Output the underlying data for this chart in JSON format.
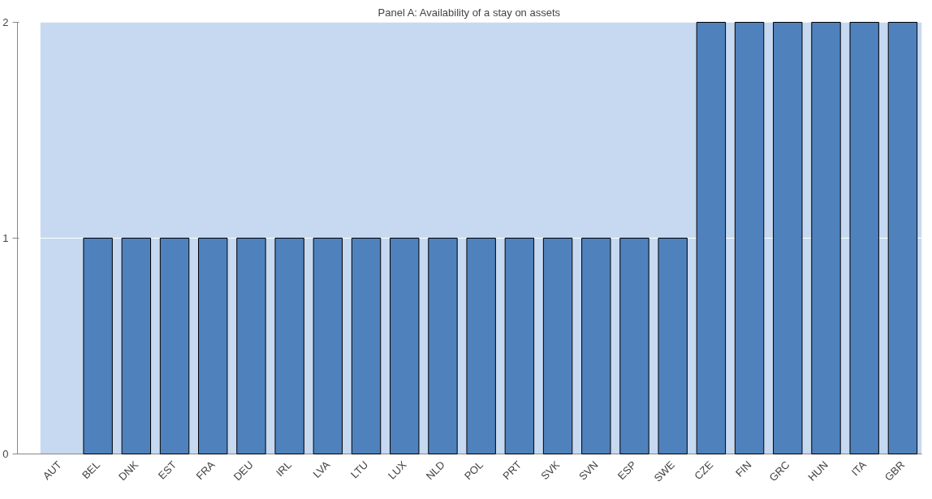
{
  "chart_data": {
    "type": "bar",
    "title": "Panel A: Availability of a stay on assets",
    "categories": [
      "AUT",
      "BEL",
      "DNK",
      "EST",
      "FRA",
      "DEU",
      "IRL",
      "LVA",
      "LTU",
      "LUX",
      "NLD",
      "POL",
      "PRT",
      "SVK",
      "SVN",
      "ESP",
      "SWE",
      "CZE",
      "FIN",
      "GRC",
      "HUN",
      "ITA",
      "GBR"
    ],
    "values": [
      0,
      1,
      1,
      1,
      1,
      1,
      1,
      1,
      1,
      1,
      1,
      1,
      1,
      1,
      1,
      1,
      1,
      2,
      2,
      2,
      2,
      2,
      2
    ],
    "color": "#4f81bd",
    "ylim": [
      0,
      2
    ],
    "yticks": [
      0,
      1,
      2
    ],
    "grid": "y"
  }
}
